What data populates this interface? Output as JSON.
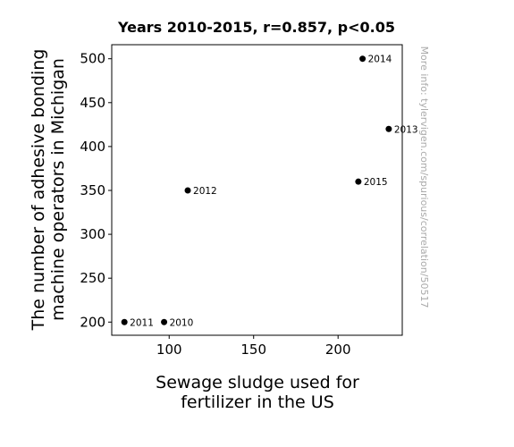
{
  "chart_data": {
    "type": "scatter",
    "title": "Years 2010-2015, r=0.857, p<0.05",
    "xlabel_lines": [
      "Sewage sludge used for",
      "fertilizer in the US"
    ],
    "ylabel_lines": [
      "The number of adhesive bonding",
      "machine operators in Michigan"
    ],
    "xlim": [
      66,
      238
    ],
    "ylim": [
      185,
      516
    ],
    "xticks": [
      100,
      150,
      200
    ],
    "yticks": [
      200,
      250,
      300,
      350,
      400,
      450,
      500
    ],
    "points": [
      {
        "x": 97,
        "y": 200,
        "label": "2010"
      },
      {
        "x": 73.5,
        "y": 200,
        "label": "2011"
      },
      {
        "x": 111,
        "y": 350,
        "label": "2012"
      },
      {
        "x": 230,
        "y": 420,
        "label": "2013"
      },
      {
        "x": 214.5,
        "y": 500,
        "label": "2014"
      },
      {
        "x": 212,
        "y": 360,
        "label": "2015"
      }
    ],
    "marker_color": "#000000",
    "grid": false,
    "watermark": "More info: tylervigen.com/spurious/correlation/50517"
  }
}
